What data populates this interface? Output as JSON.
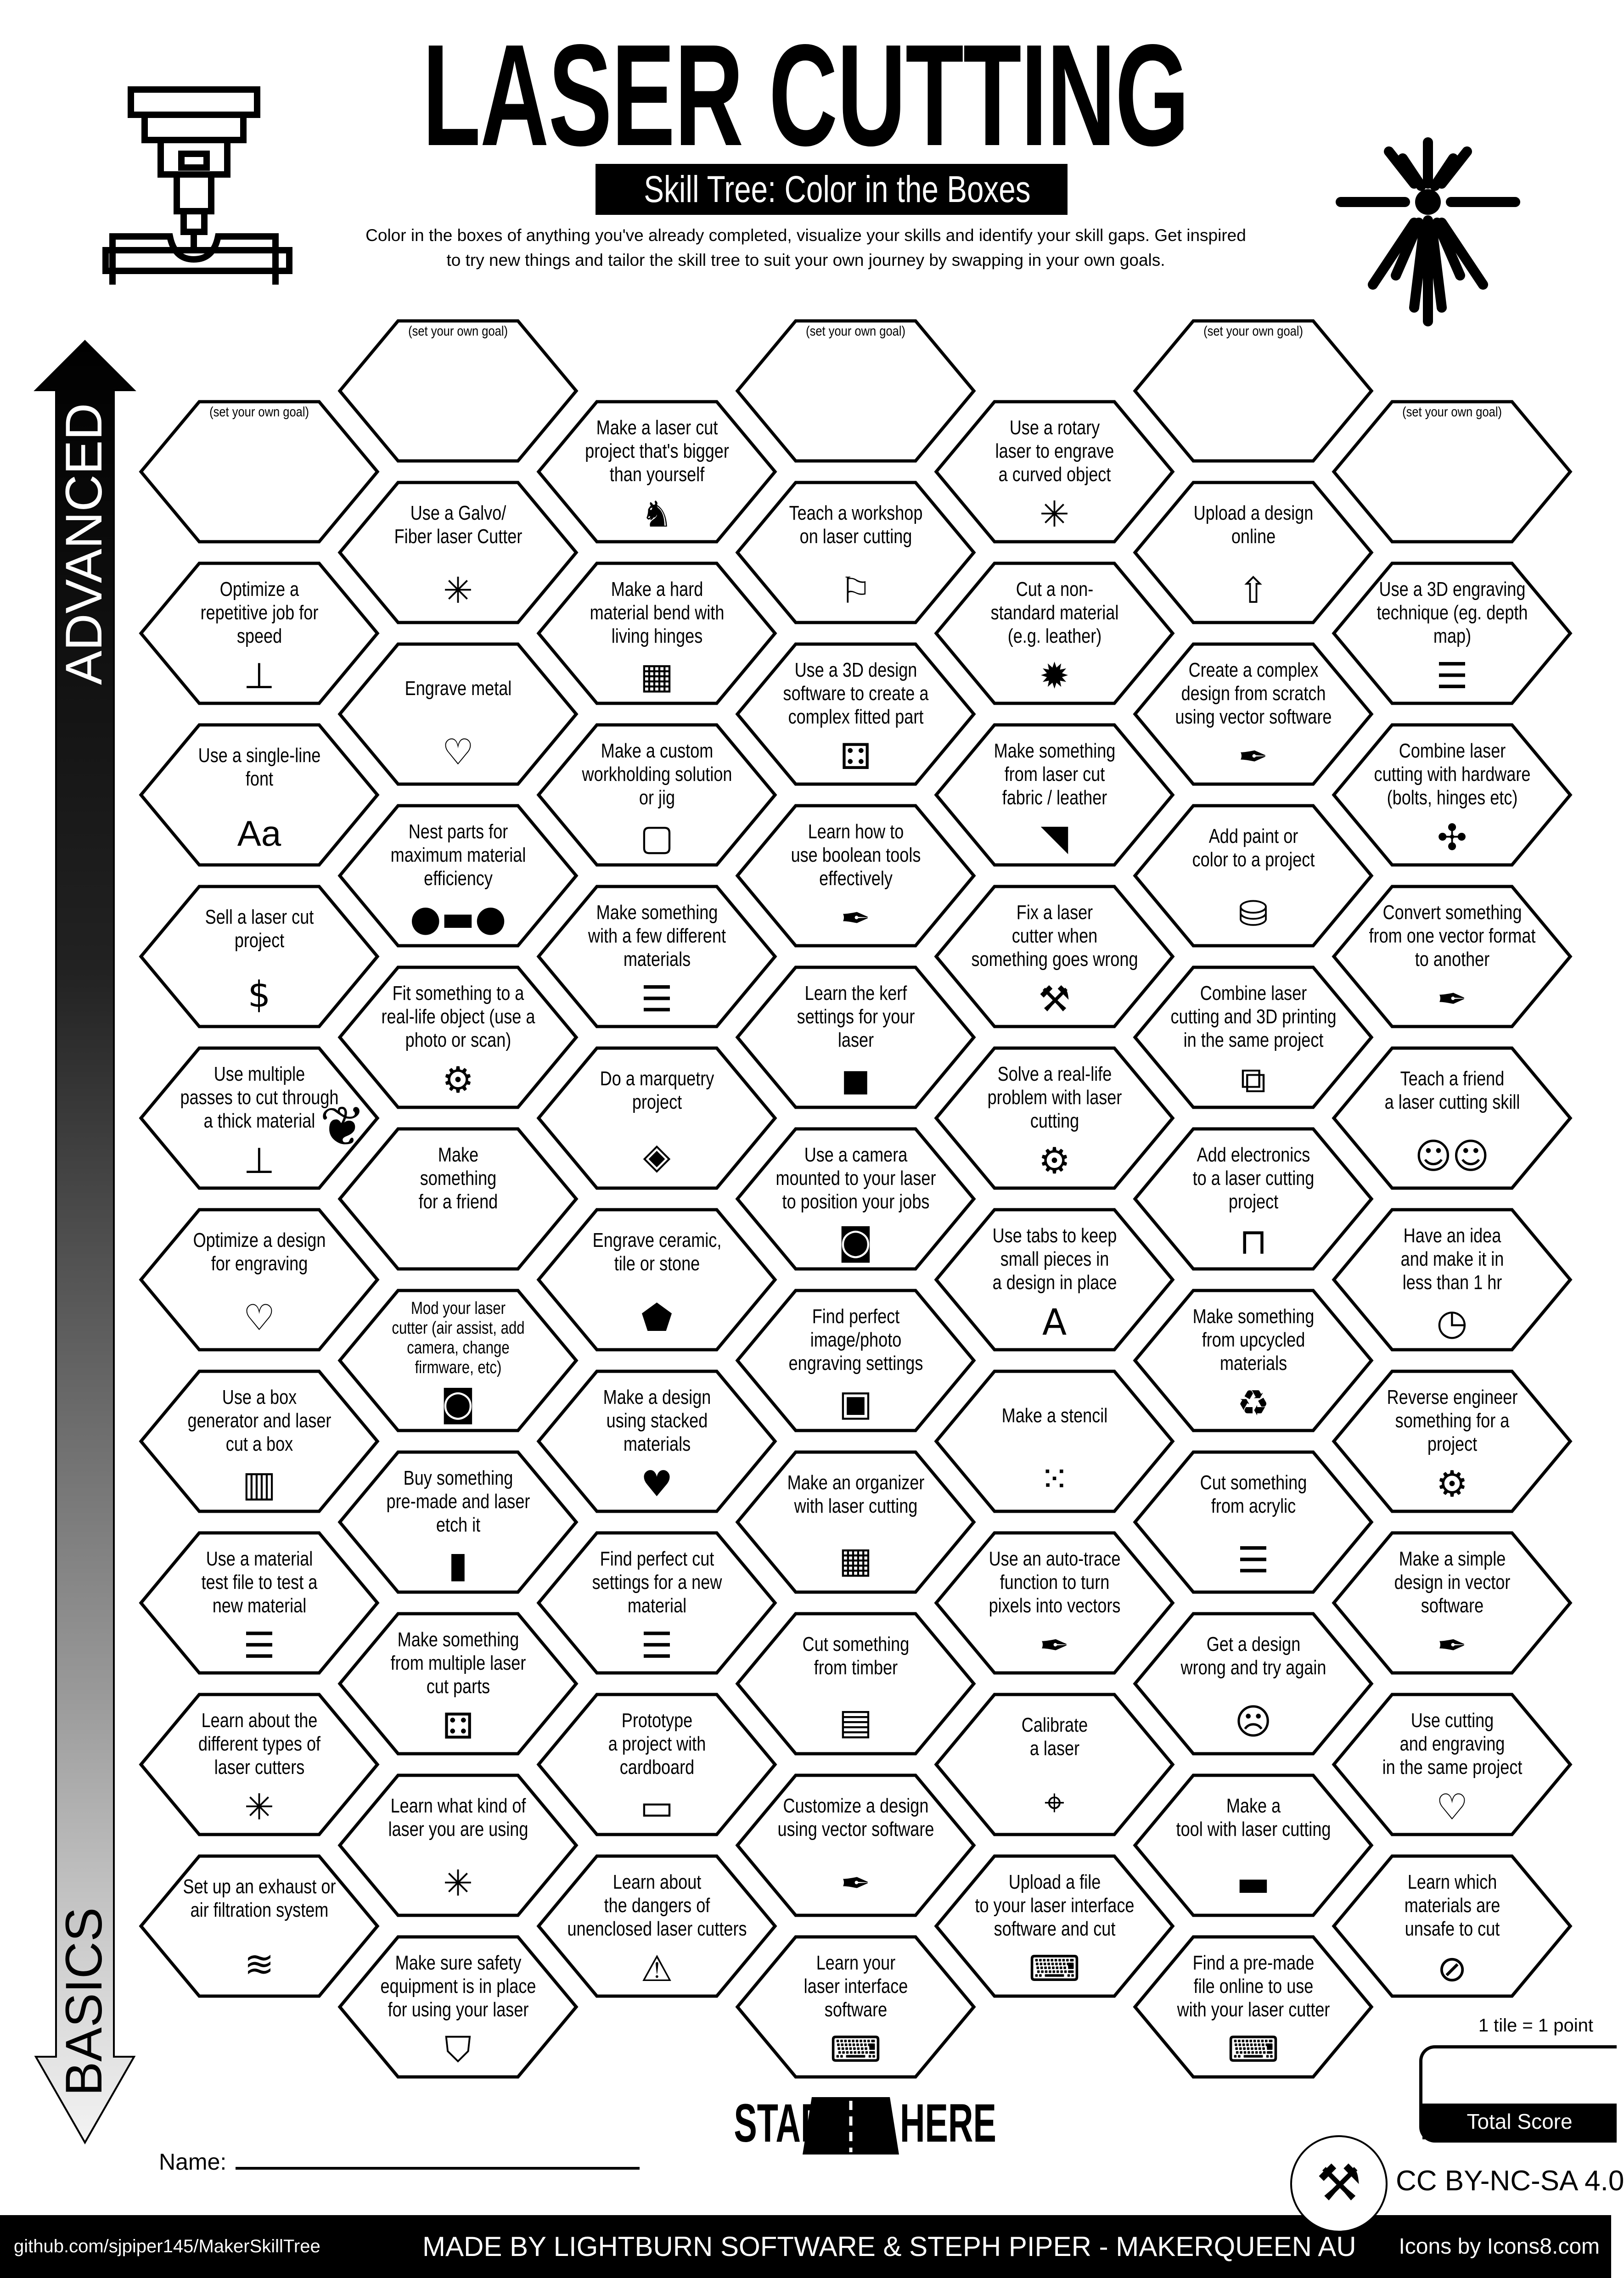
{
  "header": {
    "title": "LASER CUTTING",
    "subtitle": "Skill Tree: Color in the Boxes",
    "description": "Color in the boxes of anything you've already completed, visualize your skills and identify your skill gaps.  Get inspired\nto try new things and tailor the skill tree to suit your own journey by swapping in your own goals.",
    "left_icon": "laser-cutter-head-icon",
    "right_icon": "laser-burst-icon"
  },
  "axis": {
    "top_label": "ADVANCED",
    "bottom_label": "BASICS"
  },
  "tree": {
    "columns": [
      {
        "tiles": [
          {
            "text": "(set your own goal)",
            "goal": true
          },
          {
            "text": "Optimize a\nrepetitive job for\nspeed",
            "icon": "laser-machine"
          },
          {
            "text": "Use a single-line\nfont",
            "icon": "font-aa",
            "icon_text": "Aa"
          },
          {
            "text": "Sell a laser cut\nproject",
            "icon": "money-bag"
          },
          {
            "text": "Use multiple\npasses to cut through\na thick material",
            "icon": "laser-machine"
          },
          {
            "text": "Optimize a design\nfor engraving",
            "icon": "heart-engrave"
          },
          {
            "text": "Use a box\ngenerator and laser\ncut a box",
            "icon": "box"
          },
          {
            "text": "Use a material\ntest file to test a\nnew material",
            "icon": "layers"
          },
          {
            "text": "Learn about the\ndifferent types of\nlaser cutters",
            "icon": "laser-burst"
          },
          {
            "text": "Set up an exhaust or\nair filtration system",
            "icon": "wind"
          }
        ]
      },
      {
        "tiles": [
          {
            "text": "(set your own goal)",
            "goal": true
          },
          {
            "text": "Use a Galvo/\nFiber laser Cutter",
            "icon": "laser-burst"
          },
          {
            "text": "Engrave metal",
            "icon": "heart-engrave"
          },
          {
            "text": "Nest parts for\nmaximum material\nefficiency",
            "icon": "nesting"
          },
          {
            "text": "Fit something to a\nreal-life object (use a\nphoto or scan)",
            "icon": "gear-hand"
          },
          {
            "text": "Make\nsomething\nfor a friend",
            "icon": "gift-bow"
          },
          {
            "text": "Mod your laser\ncutter (air assist, add\ncamera, change\nfirmware, etc)",
            "icon": "camera"
          },
          {
            "text": "Buy something\npre-made and laser\netch it",
            "icon": "knife-block"
          },
          {
            "text": "Make something\nfrom multiple laser\ncut parts",
            "icon": "parts"
          },
          {
            "text": "Learn what kind of\nlaser you are using",
            "icon": "laser-burst"
          },
          {
            "text": "Make sure safety\nequipment is in place\nfor using your laser",
            "icon": "safety-equipment"
          }
        ]
      },
      {
        "tiles": [
          {
            "text": "Make a laser cut\nproject  that's bigger\nthan yourself",
            "icon": "elephant"
          },
          {
            "text": "Make a hard\nmaterial bend with\nliving hinges",
            "icon": "living-hinge"
          },
          {
            "text": "Make a custom\nworkholding solution\nor jig",
            "icon": "frame"
          },
          {
            "text": "Make something\nwith a few different\nmaterials",
            "icon": "layers"
          },
          {
            "text": "Do a marquetry\nproject",
            "icon": "marquetry"
          },
          {
            "text": "Engrave ceramic,\ntile or stone",
            "icon": "stone"
          },
          {
            "text": "Make a design\nusing stacked\nmaterials",
            "icon": "heart-stacked"
          },
          {
            "text": "Find perfect cut\nsettings for a new\nmaterial",
            "icon": "layers"
          },
          {
            "text": "Prototype\na project with\ncardboard",
            "icon": "cardboard"
          },
          {
            "text": "Learn about\nthe dangers of\nunenclosed laser cutters",
            "icon": "warning"
          }
        ]
      },
      {
        "tiles": [
          {
            "text": "(set your own goal)",
            "goal": true
          },
          {
            "text": "Teach a workshop\non laser cutting",
            "icon": "teacher"
          },
          {
            "text": "Use a 3D design\nsoftware to create a\ncomplex fitted part",
            "icon": "parts"
          },
          {
            "text": "Learn how to\nuse boolean tools\neffectively",
            "icon": "pen-tool"
          },
          {
            "text": "Learn the kerf\nsettings for your\nlaser",
            "icon": "cube-sliders"
          },
          {
            "text": "Use a camera\nmounted to your laser\nto position your jobs",
            "icon": "camera"
          },
          {
            "text": "Find perfect\nimage/photo\nengraving settings",
            "icon": "portrait"
          },
          {
            "text": "Make an organizer\nwith laser cutting",
            "icon": "organizer"
          },
          {
            "text": "Cut something\nfrom timber",
            "icon": "timber"
          },
          {
            "text": "Customize a design\nusing vector software",
            "icon": "pen-tool"
          },
          {
            "text": "Learn your\nlaser interface\nsoftware",
            "icon": "laptop"
          }
        ]
      },
      {
        "tiles": [
          {
            "text": "Use a rotary\nlaser to engrave\na curved object",
            "icon": "laser-burst"
          },
          {
            "text": "Cut a non-\nstandard material\n(e.g. leather)",
            "icon": "leather"
          },
          {
            "text": "Make something\nfrom laser cut\nfabric / leather",
            "icon": "fabric"
          },
          {
            "text": "Fix a laser\ncutter when\nsomething goes wrong",
            "icon": "tools"
          },
          {
            "text": "Solve a real-life\nproblem with laser\ncutting",
            "icon": "gear-hand"
          },
          {
            "text": "Use tabs to keep\nsmall pieces in\na design in place",
            "icon": "tabs-letter"
          },
          {
            "text": "Make a stencil",
            "icon": "stencil"
          },
          {
            "text": "Use an auto-trace\nfunction to turn\npixels into vectors",
            "icon": "pen-tool"
          },
          {
            "text": "Calibrate\na laser",
            "icon": "crosshair"
          },
          {
            "text": "Upload a file\nto your laser interface\nsoftware and cut",
            "icon": "laptop"
          }
        ]
      },
      {
        "tiles": [
          {
            "text": "(set your own goal)",
            "goal": true
          },
          {
            "text": "Upload a design\nonline",
            "icon": "upload"
          },
          {
            "text": "Create a complex\ndesign from scratch\nusing vector software",
            "icon": "pen-tool"
          },
          {
            "text": "Add paint or\ncolor to a project",
            "icon": "paint-bucket"
          },
          {
            "text": "Combine laser\ncutting and 3D printing\nin the same project",
            "icon": "3d-printer"
          },
          {
            "text": "Add electronics\nto a laser cutting\nproject",
            "icon": "led"
          },
          {
            "text": "Make something\nfrom upcycled\nmaterials",
            "icon": "recycle"
          },
          {
            "text": "Cut something\nfrom acrylic",
            "icon": "layers"
          },
          {
            "text": "Get a design\nwrong and try again",
            "icon": "facepalm"
          },
          {
            "text": "Make a\ntool with laser cutting",
            "icon": "ruler"
          },
          {
            "text": "Find a pre-made\nfile online to use\nwith your laser cutter",
            "icon": "laptop"
          }
        ]
      },
      {
        "tiles": [
          {
            "text": "(set your own goal)",
            "goal": true
          },
          {
            "text": "Use a 3D engraving\ntechnique (eg. depth\nmap)",
            "icon": "layers"
          },
          {
            "text": "Combine laser\ncutting with hardware\n(bolts, hinges etc)",
            "icon": "hardware"
          },
          {
            "text": "Convert something\nfrom one vector format\nto another",
            "icon": "pen-tool"
          },
          {
            "text": "Teach a friend\na laser cutting skill",
            "icon": "teach-friend"
          },
          {
            "text": "Have an idea\nand make it in\nless than 1 hr",
            "icon": "clock"
          },
          {
            "text": "Reverse engineer\nsomething for a\nproject",
            "icon": "gear-hand"
          },
          {
            "text": "Make a simple\ndesign in vector\nsoftware",
            "icon": "pen-tool"
          },
          {
            "text": "Use cutting\nand engraving\nin the same project",
            "icon": "heart-engrave"
          },
          {
            "text": "Learn which\nmaterials are\nunsafe to cut",
            "icon": "no-layers"
          }
        ]
      }
    ]
  },
  "start": {
    "left": "START",
    "right": "HERE",
    "icon": "road-icon"
  },
  "name_label": "Name:",
  "score": {
    "note": "1 tile = 1 point",
    "label": "Total Score"
  },
  "license": "CC BY-NC-SA 4.0",
  "footer": {
    "left": "github.com/sjpiper145/MakerSkillTree",
    "center": "MADE BY LIGHTBURN SOFTWARE & STEPH PIPER  -  MAKERQUEEN AU",
    "right": "Icons by Icons8.com",
    "logo_icon": "makerqueen-logo"
  }
}
